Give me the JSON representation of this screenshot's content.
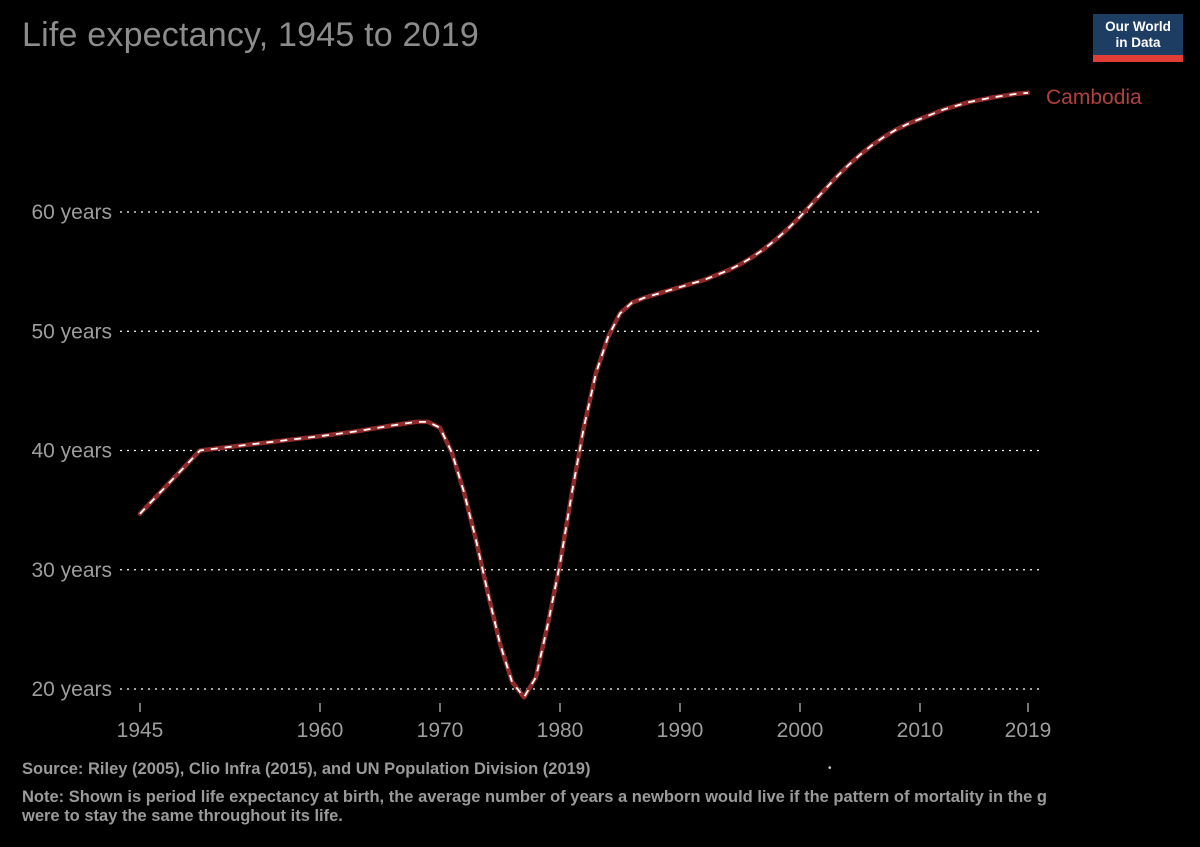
{
  "header": {
    "title": "Life expectancy, 1945 to 2019"
  },
  "logo": {
    "line1": "Our World",
    "line2": "in Data"
  },
  "chart_data": {
    "type": "line",
    "title": "Life expectancy, 1945 to 2019",
    "entity": "Cambodia",
    "ylabel": "",
    "y_tick_suffix": " years",
    "yticks": [
      20,
      30,
      40,
      50,
      60
    ],
    "xticks": [
      1945,
      1960,
      1970,
      1980,
      1990,
      2000,
      2010,
      2019
    ],
    "xlim": [
      1945,
      2019
    ],
    "ylim": [
      19,
      70
    ],
    "grid": true,
    "legend_position": "end-of-line-label",
    "series": [
      {
        "name": "Cambodia",
        "color": "#8f2a2a",
        "points": [
          [
            1945,
            34.7
          ],
          [
            1950,
            40.0
          ],
          [
            1955,
            40.6
          ],
          [
            1960,
            41.2
          ],
          [
            1963,
            41.6
          ],
          [
            1966,
            42.1
          ],
          [
            1968,
            42.4
          ],
          [
            1969,
            42.4
          ],
          [
            1970,
            41.9
          ],
          [
            1971,
            39.8
          ],
          [
            1972,
            36.5
          ],
          [
            1973,
            32.5
          ],
          [
            1974,
            28.0
          ],
          [
            1975,
            23.8
          ],
          [
            1976,
            20.6
          ],
          [
            1977,
            19.3
          ],
          [
            1978,
            21.0
          ],
          [
            1979,
            25.5
          ],
          [
            1980,
            30.5
          ],
          [
            1981,
            36.5
          ],
          [
            1982,
            42.0
          ],
          [
            1983,
            46.5
          ],
          [
            1984,
            49.5
          ],
          [
            1985,
            51.5
          ],
          [
            1986,
            52.4
          ],
          [
            1987,
            52.8
          ],
          [
            1988,
            53.1
          ],
          [
            1989,
            53.4
          ],
          [
            1990,
            53.7
          ],
          [
            1991,
            54.0
          ],
          [
            1992,
            54.3
          ],
          [
            1993,
            54.7
          ],
          [
            1994,
            55.1
          ],
          [
            1995,
            55.6
          ],
          [
            1996,
            56.2
          ],
          [
            1997,
            56.9
          ],
          [
            1998,
            57.7
          ],
          [
            1999,
            58.6
          ],
          [
            2000,
            59.6
          ],
          [
            2001,
            60.7
          ],
          [
            2002,
            61.8
          ],
          [
            2003,
            62.9
          ],
          [
            2004,
            63.9
          ],
          [
            2005,
            64.8
          ],
          [
            2006,
            65.6
          ],
          [
            2007,
            66.3
          ],
          [
            2008,
            66.9
          ],
          [
            2009,
            67.4
          ],
          [
            2010,
            67.8
          ],
          [
            2011,
            68.2
          ],
          [
            2012,
            68.6
          ],
          [
            2013,
            68.9
          ],
          [
            2014,
            69.2
          ],
          [
            2015,
            69.4
          ],
          [
            2016,
            69.6
          ],
          [
            2017,
            69.75
          ],
          [
            2018,
            69.9
          ],
          [
            2019,
            70.0
          ]
        ]
      }
    ]
  },
  "footer": {
    "source": "Source: Riley (2005), Clio Infra (2015), and UN Population Division (2019)",
    "dot": "•",
    "note_line1": "Note: Shown is period life expectancy at birth, the average number of years a newborn would live if the pattern of mortality in the g",
    "note_line2": "were to stay the same throughout its life."
  },
  "colors": {
    "background": "#000000",
    "title_text": "#8c8c8c",
    "axis_text": "#9d9d9d",
    "grid": "#ffffff",
    "line": "#8f2a2a",
    "dash_overlay": "#ffffff",
    "entity_label": "#b0413e",
    "footer_text": "#9a9a9a",
    "logo_bg": "#1d3d63",
    "logo_bar": "#e23d34",
    "logo_text": "#ffffff"
  }
}
